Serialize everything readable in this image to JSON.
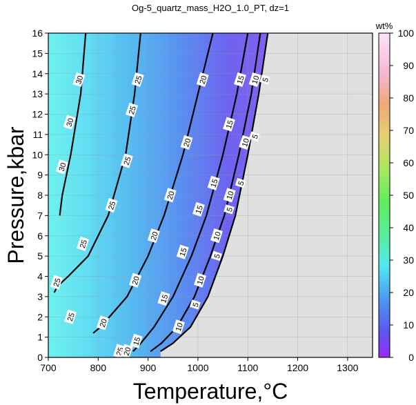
{
  "chart_data": {
    "type": "heatmap",
    "title": "Og-5_quartz_mass_H2O_1.0_PT, dz=1",
    "xlabel": "Temperature,°C",
    "ylabel": "Pressure,kbar",
    "xlim": [
      700,
      1350
    ],
    "ylim": [
      0,
      16
    ],
    "x_ticks": [
      700,
      800,
      900,
      1000,
      1100,
      1200,
      1300
    ],
    "y_ticks": [
      0,
      1,
      2,
      3,
      4,
      5,
      6,
      7,
      8,
      9,
      10,
      11,
      12,
      13,
      14,
      15,
      16
    ],
    "grid": true,
    "colorbar": {
      "label": "wt%",
      "range": [
        0,
        100
      ],
      "ticks": [
        0,
        10,
        20,
        30,
        40,
        50,
        60,
        70,
        80,
        90,
        100
      ],
      "placement": "right"
    },
    "no_data_color": "#e0e0e0",
    "contours": [
      {
        "level": 5,
        "points": [
          [
            1140,
            16
          ],
          [
            1122,
            13
          ],
          [
            1100,
            10
          ],
          [
            1075,
            7
          ],
          [
            1050,
            5
          ],
          [
            1020,
            3
          ],
          [
            985,
            1.5
          ],
          [
            950,
            0.7
          ],
          [
            925,
            0.3
          ]
        ]
      },
      {
        "level": 10,
        "points": [
          [
            1125,
            16
          ],
          [
            1107,
            13
          ],
          [
            1082,
            10
          ],
          [
            1053,
            7
          ],
          [
            1025,
            5
          ],
          [
            993,
            3
          ],
          [
            958,
            1.5
          ],
          [
            927,
            0.7
          ],
          [
            905,
            0.3
          ]
        ]
      },
      {
        "level": 15,
        "points": [
          [
            1100,
            16
          ],
          [
            1078,
            13
          ],
          [
            1050,
            10
          ],
          [
            1017,
            7
          ],
          [
            987,
            5
          ],
          [
            950,
            3
          ],
          [
            912,
            1.5
          ],
          [
            882,
            0.6
          ],
          [
            870,
            0.3
          ]
        ]
      },
      {
        "level": 20,
        "points": [
          [
            1030,
            16
          ],
          [
            1000,
            13
          ],
          [
            970,
            10
          ],
          [
            932,
            7
          ],
          [
            900,
            5
          ],
          [
            858,
            3
          ],
          [
            805,
            1.5
          ],
          [
            790,
            1.2
          ]
        ]
      },
      {
        "level": 25,
        "points": [
          [
            885,
            16
          ],
          [
            873,
            13
          ],
          [
            855,
            10
          ],
          [
            820,
            7
          ],
          [
            780,
            5
          ],
          [
            740,
            4
          ],
          [
            718,
            3.5
          ],
          [
            712,
            3.2
          ]
        ]
      },
      {
        "level": 30,
        "points": [
          [
            775,
            16
          ],
          [
            765,
            13
          ],
          [
            745,
            10
          ],
          [
            728,
            8
          ],
          [
            723,
            7
          ]
        ]
      }
    ],
    "contour_labels": [
      {
        "text": "30",
        "x": 762,
        "y": 13.7
      },
      {
        "text": "30",
        "x": 743,
        "y": 11.6
      },
      {
        "text": "30",
        "x": 728,
        "y": 9.4
      },
      {
        "text": "25",
        "x": 880,
        "y": 13.7
      },
      {
        "text": "25",
        "x": 868,
        "y": 12.2
      },
      {
        "text": "25",
        "x": 858,
        "y": 9.7
      },
      {
        "text": "25",
        "x": 827,
        "y": 7.5
      },
      {
        "text": "25",
        "x": 770,
        "y": 5.6
      },
      {
        "text": "25",
        "x": 717,
        "y": 3.7
      },
      {
        "text": "25",
        "x": 745,
        "y": 2.0
      },
      {
        "text": "25",
        "x": 843,
        "y": 0.3
      },
      {
        "text": "20",
        "x": 1010,
        "y": 13.7
      },
      {
        "text": "20",
        "x": 978,
        "y": 10.6
      },
      {
        "text": "20",
        "x": 945,
        "y": 8.0
      },
      {
        "text": "20",
        "x": 912,
        "y": 6.0
      },
      {
        "text": "20",
        "x": 875,
        "y": 3.8
      },
      {
        "text": "20",
        "x": 810,
        "y": 1.7
      },
      {
        "text": "20",
        "x": 858,
        "y": 0.3
      },
      {
        "text": "15",
        "x": 1085,
        "y": 13.7
      },
      {
        "text": "15",
        "x": 1063,
        "y": 11.5
      },
      {
        "text": "15",
        "x": 1032,
        "y": 8.6
      },
      {
        "text": "15",
        "x": 1002,
        "y": 7.3
      },
      {
        "text": "15",
        "x": 970,
        "y": 5.2
      },
      {
        "text": "15",
        "x": 932,
        "y": 2.9
      },
      {
        "text": "15",
        "x": 877,
        "y": 0.8
      },
      {
        "text": "10",
        "x": 1115,
        "y": 13.7
      },
      {
        "text": "10",
        "x": 1095,
        "y": 10.6
      },
      {
        "text": "10",
        "x": 1064,
        "y": 8.0
      },
      {
        "text": "10",
        "x": 1038,
        "y": 6.0
      },
      {
        "text": "10",
        "x": 1005,
        "y": 3.8
      },
      {
        "text": "10",
        "x": 962,
        "y": 1.5
      },
      {
        "text": "5",
        "x": 1135,
        "y": 13.7
      },
      {
        "text": "5",
        "x": 1114,
        "y": 10.9
      },
      {
        "text": "5",
        "x": 1086,
        "y": 8.6
      },
      {
        "text": "5",
        "x": 1063,
        "y": 7.3
      },
      {
        "text": "5",
        "x": 1038,
        "y": 5.0
      },
      {
        "text": "5",
        "x": 995,
        "y": 2.6
      }
    ]
  }
}
